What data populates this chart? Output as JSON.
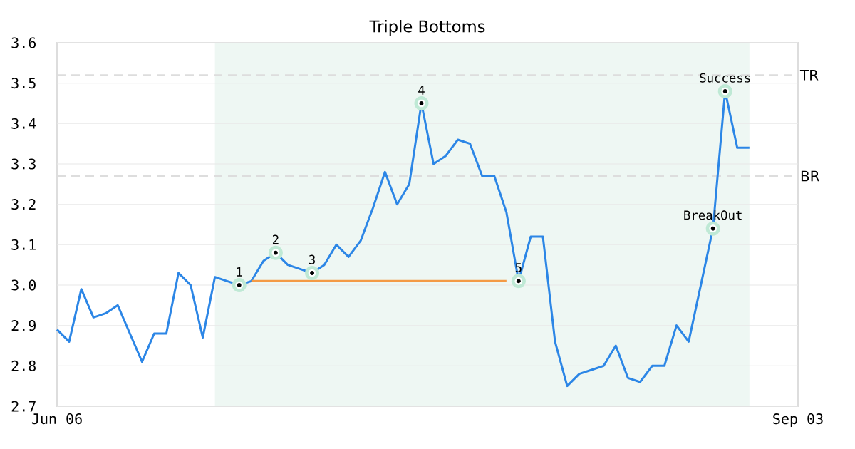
{
  "chart_data": {
    "type": "line",
    "title": "Triple Bottoms",
    "categories": [
      "Jun 06",
      null,
      null,
      null,
      null,
      null,
      null,
      null,
      null,
      null,
      null,
      null,
      null,
      null,
      null,
      null,
      null,
      null,
      null,
      null,
      null,
      null,
      null,
      null,
      null,
      null,
      null,
      null,
      null,
      null,
      null,
      null,
      null,
      null,
      null,
      null,
      null,
      null,
      null,
      null,
      null,
      null,
      null,
      null,
      null,
      null,
      null,
      null,
      null,
      null,
      null,
      null,
      null,
      null,
      null,
      null,
      null,
      null,
      null,
      null,
      null,
      "Sep 03"
    ],
    "series": [
      {
        "color": "#2c86e6",
        "values": [
          2.89,
          2.86,
          2.99,
          2.92,
          2.93,
          2.95,
          2.88,
          2.81,
          2.88,
          2.88,
          3.03,
          3.0,
          2.87,
          3.02,
          3.01,
          3.0,
          3.01,
          3.06,
          3.08,
          3.05,
          3.04,
          3.03,
          3.05,
          3.1,
          3.07,
          3.11,
          3.19,
          3.28,
          3.2,
          3.25,
          3.45,
          3.3,
          3.32,
          3.36,
          3.35,
          3.27,
          3.27,
          3.18,
          3.01,
          3.12,
          3.12,
          2.86,
          2.75,
          2.78,
          2.79,
          2.8,
          2.85,
          2.77,
          2.76,
          2.8,
          2.8,
          2.9,
          2.86,
          3.0,
          3.14,
          3.48,
          3.34,
          3.34,
          null,
          null,
          null,
          null
        ]
      },
      {
        "color": "#f49a45",
        "values": [
          null,
          null,
          null,
          null,
          null,
          null,
          null,
          null,
          null,
          null,
          null,
          null,
          null,
          null,
          null,
          null,
          3.01,
          3.01,
          3.01,
          3.01,
          3.01,
          3.01,
          3.01,
          3.01,
          3.01,
          3.01,
          3.01,
          3.01,
          3.01,
          3.01,
          3.01,
          3.01,
          3.01,
          3.01,
          3.01,
          3.01,
          3.01,
          3.01,
          null,
          null,
          null,
          null,
          null,
          null,
          null,
          null,
          null,
          null,
          null,
          null,
          null,
          null,
          null,
          null,
          null,
          null,
          null,
          null,
          null,
          null,
          null,
          null
        ]
      },
      {
        "type": "scatter",
        "marker": "circle",
        "color": "#000000",
        "values": [
          null,
          null,
          null,
          null,
          null,
          null,
          null,
          null,
          null,
          null,
          null,
          null,
          null,
          null,
          null,
          3.0,
          null,
          null,
          3.08,
          null,
          null,
          3.03,
          null,
          null,
          null,
          null,
          null,
          null,
          null,
          null,
          3.45,
          null,
          null,
          null,
          null,
          null,
          null,
          null,
          3.01,
          null,
          null,
          null,
          null,
          null,
          null,
          null,
          null,
          null,
          null,
          null,
          null,
          null,
          null,
          null,
          3.14,
          3.48,
          null,
          null,
          null,
          null,
          null,
          null
        ]
      }
    ],
    "ylim": [
      2.7,
      3.6
    ],
    "yticks": [
      {
        "value": 2.7,
        "label": "2.7"
      },
      {
        "value": 2.8,
        "label": "2.8"
      },
      {
        "value": 2.9,
        "label": "2.9"
      },
      {
        "value": 3.0,
        "label": "3.0"
      },
      {
        "value": 3.1,
        "label": "3.1"
      },
      {
        "value": 3.2,
        "label": "3.2"
      },
      {
        "value": 3.3,
        "label": "3.3"
      },
      {
        "value": 3.4,
        "label": "3.4"
      },
      {
        "value": 3.5,
        "label": "3.5"
      },
      {
        "value": 3.6,
        "label": "3.6"
      }
    ],
    "grid": "y",
    "ref_lines": [
      {
        "axis": "y",
        "value": 3.52,
        "label": "TR",
        "color": "#dddddd",
        "line_style": "dashed"
      },
      {
        "axis": "y",
        "value": 3.27,
        "label": "BR",
        "color": "#dddddd",
        "line_style": "dashed"
      }
    ],
    "annotations": [
      "1",
      "2",
      "3",
      "4",
      "5",
      "BreakOut",
      "Success"
    ],
    "marker": "none"
  }
}
